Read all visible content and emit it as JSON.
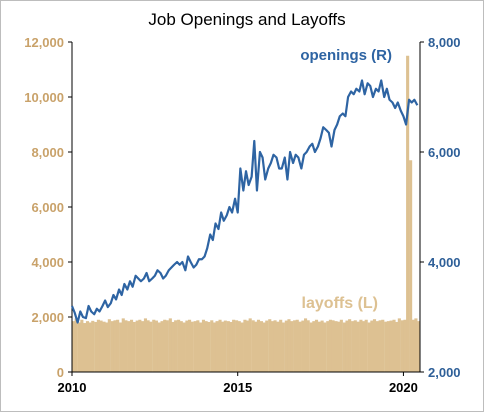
{
  "chart_data": {
    "type": "bar+line",
    "title": "Job Openings and Layoffs",
    "x_range": [
      2010.0,
      2020.5
    ],
    "x_ticks": [
      "2010",
      "2015",
      "2020"
    ],
    "x_tick_values": [
      2010,
      2015,
      2020
    ],
    "left_axis": {
      "ylim": [
        0,
        12000
      ],
      "ticks": [
        "0",
        "2,000",
        "4,000",
        "6,000",
        "8,000",
        "10,000",
        "12,000"
      ],
      "tick_values": [
        0,
        2000,
        4000,
        6000,
        8000,
        10000,
        12000
      ],
      "color": "#c9a26a"
    },
    "right_axis": {
      "ylim": [
        2000,
        8000
      ],
      "ticks": [
        "2,000",
        "4,000",
        "6,000",
        "8,000"
      ],
      "tick_values": [
        2000,
        4000,
        6000,
        8000
      ],
      "color": "#2e5f98"
    },
    "series": [
      {
        "name": "layoffs (L)",
        "axis": "left",
        "kind": "bar",
        "color": "#ddc192",
        "x": [
          2010.0,
          2010.08,
          2010.17,
          2010.25,
          2010.33,
          2010.42,
          2010.5,
          2010.58,
          2010.67,
          2010.75,
          2010.83,
          2010.92,
          2011.0,
          2011.08,
          2011.17,
          2011.25,
          2011.33,
          2011.42,
          2011.5,
          2011.58,
          2011.67,
          2011.75,
          2011.83,
          2011.92,
          2012.0,
          2012.08,
          2012.17,
          2012.25,
          2012.33,
          2012.42,
          2012.5,
          2012.58,
          2012.67,
          2012.75,
          2012.83,
          2012.92,
          2013.0,
          2013.08,
          2013.17,
          2013.25,
          2013.33,
          2013.42,
          2013.5,
          2013.58,
          2013.67,
          2013.75,
          2013.83,
          2013.92,
          2014.0,
          2014.08,
          2014.17,
          2014.25,
          2014.33,
          2014.42,
          2014.5,
          2014.58,
          2014.67,
          2014.75,
          2014.83,
          2014.92,
          2015.0,
          2015.08,
          2015.17,
          2015.25,
          2015.33,
          2015.42,
          2015.5,
          2015.58,
          2015.67,
          2015.75,
          2015.83,
          2015.92,
          2016.0,
          2016.08,
          2016.17,
          2016.25,
          2016.33,
          2016.42,
          2016.5,
          2016.58,
          2016.67,
          2016.75,
          2016.83,
          2016.92,
          2017.0,
          2017.08,
          2017.17,
          2017.25,
          2017.33,
          2017.42,
          2017.5,
          2017.58,
          2017.67,
          2017.75,
          2017.83,
          2017.92,
          2018.0,
          2018.08,
          2018.17,
          2018.25,
          2018.33,
          2018.42,
          2018.5,
          2018.58,
          2018.67,
          2018.75,
          2018.83,
          2018.92,
          2019.0,
          2019.08,
          2019.17,
          2019.25,
          2019.33,
          2019.42,
          2019.5,
          2019.58,
          2019.67,
          2019.75,
          2019.83,
          2019.92,
          2020.0,
          2020.08,
          2020.17,
          2020.25,
          2020.33,
          2020.42
        ],
        "values": [
          1850,
          1950,
          1800,
          1900,
          1780,
          1850,
          1800,
          1860,
          1820,
          1900,
          1870,
          1830,
          1800,
          1920,
          1850,
          1880,
          1900,
          1800,
          1950,
          1880,
          1850,
          1900,
          1820,
          1870,
          1900,
          1850,
          1950,
          1880,
          1830,
          1900,
          1870,
          1800,
          1850,
          1900,
          1880,
          1950,
          1820,
          1880,
          1900,
          1850,
          1800,
          1870,
          1900,
          1830,
          1850,
          1880,
          1800,
          1900,
          1850,
          1820,
          1880,
          1800,
          1850,
          1900,
          1830,
          1870,
          1850,
          1820,
          1900,
          1880,
          1850,
          1800,
          1900,
          1870,
          1950,
          1880,
          1830,
          1900,
          1850,
          1800,
          1870,
          1920,
          1850,
          1880,
          1830,
          1900,
          1800,
          1870,
          1920,
          1850,
          1880,
          1900,
          1830,
          1870,
          1950,
          1880,
          1800,
          1850,
          1900,
          1830,
          1870,
          1800,
          1850,
          1900,
          1880,
          1850,
          1830,
          1900,
          1800,
          1870,
          1920,
          1850,
          1880,
          1830,
          1900,
          1850,
          1900,
          1800,
          1870,
          1920,
          1850,
          1880,
          1900,
          1830,
          1850,
          1870,
          1900,
          1820,
          1950,
          1880,
          1900,
          11500,
          7700,
          1900,
          1950,
          1850
        ]
      },
      {
        "name": "openings (R)",
        "axis": "right",
        "kind": "line",
        "color": "#2e64a3",
        "x": [
          2010.0,
          2010.08,
          2010.17,
          2010.25,
          2010.33,
          2010.42,
          2010.5,
          2010.58,
          2010.67,
          2010.75,
          2010.83,
          2010.92,
          2011.0,
          2011.08,
          2011.17,
          2011.25,
          2011.33,
          2011.42,
          2011.5,
          2011.58,
          2011.67,
          2011.75,
          2011.83,
          2011.92,
          2012.0,
          2012.08,
          2012.17,
          2012.25,
          2012.33,
          2012.42,
          2012.5,
          2012.58,
          2012.67,
          2012.75,
          2012.83,
          2012.92,
          2013.0,
          2013.08,
          2013.17,
          2013.25,
          2013.33,
          2013.42,
          2013.5,
          2013.58,
          2013.67,
          2013.75,
          2013.83,
          2013.92,
          2014.0,
          2014.08,
          2014.17,
          2014.25,
          2014.33,
          2014.42,
          2014.5,
          2014.58,
          2014.67,
          2014.75,
          2014.83,
          2014.92,
          2015.0,
          2015.08,
          2015.17,
          2015.25,
          2015.33,
          2015.42,
          2015.5,
          2015.58,
          2015.67,
          2015.75,
          2015.83,
          2015.92,
          2016.0,
          2016.08,
          2016.17,
          2016.25,
          2016.33,
          2016.42,
          2016.5,
          2016.58,
          2016.67,
          2016.75,
          2016.83,
          2016.92,
          2017.0,
          2017.08,
          2017.17,
          2017.25,
          2017.33,
          2017.42,
          2017.5,
          2017.58,
          2017.67,
          2017.75,
          2017.83,
          2017.92,
          2018.0,
          2018.08,
          2018.17,
          2018.25,
          2018.33,
          2018.42,
          2018.5,
          2018.58,
          2018.67,
          2018.75,
          2018.83,
          2018.92,
          2019.0,
          2019.08,
          2019.17,
          2019.25,
          2019.33,
          2019.42,
          2019.5,
          2019.58,
          2019.67,
          2019.75,
          2019.83,
          2019.92,
          2020.0,
          2020.08,
          2020.17,
          2020.25,
          2020.33,
          2020.42
        ],
        "values": [
          3200,
          3080,
          2900,
          3100,
          3000,
          2980,
          3200,
          3100,
          3050,
          3150,
          3100,
          3200,
          3300,
          3180,
          3250,
          3400,
          3320,
          3500,
          3400,
          3600,
          3500,
          3650,
          3550,
          3750,
          3700,
          3650,
          3700,
          3800,
          3650,
          3700,
          3750,
          3850,
          3800,
          3700,
          3750,
          3850,
          3900,
          3950,
          4000,
          3950,
          4000,
          3850,
          4100,
          4000,
          3900,
          3950,
          4050,
          4050,
          4100,
          4250,
          4500,
          4400,
          4700,
          4600,
          4900,
          4750,
          4850,
          5000,
          4900,
          5150,
          4900,
          5700,
          5300,
          5650,
          5400,
          5550,
          6200,
          5300,
          6000,
          5900,
          5500,
          5700,
          5800,
          5950,
          5900,
          5700,
          5700,
          5900,
          5500,
          6000,
          5800,
          5950,
          5900,
          5700,
          5950,
          6000,
          6100,
          6150,
          6000,
          6100,
          6250,
          6450,
          6400,
          6350,
          6100,
          6400,
          6500,
          6650,
          6700,
          6650,
          7000,
          7100,
          7050,
          7150,
          7100,
          7300,
          7050,
          7250,
          7200,
          7000,
          7150,
          7100,
          7300,
          7000,
          7150,
          6950,
          6900,
          6800,
          6900,
          6750,
          6650,
          6500,
          6950,
          6900,
          6950,
          6850
        ]
      }
    ],
    "annotations": [
      "openings (R)",
      "layoffs (L)"
    ]
  }
}
